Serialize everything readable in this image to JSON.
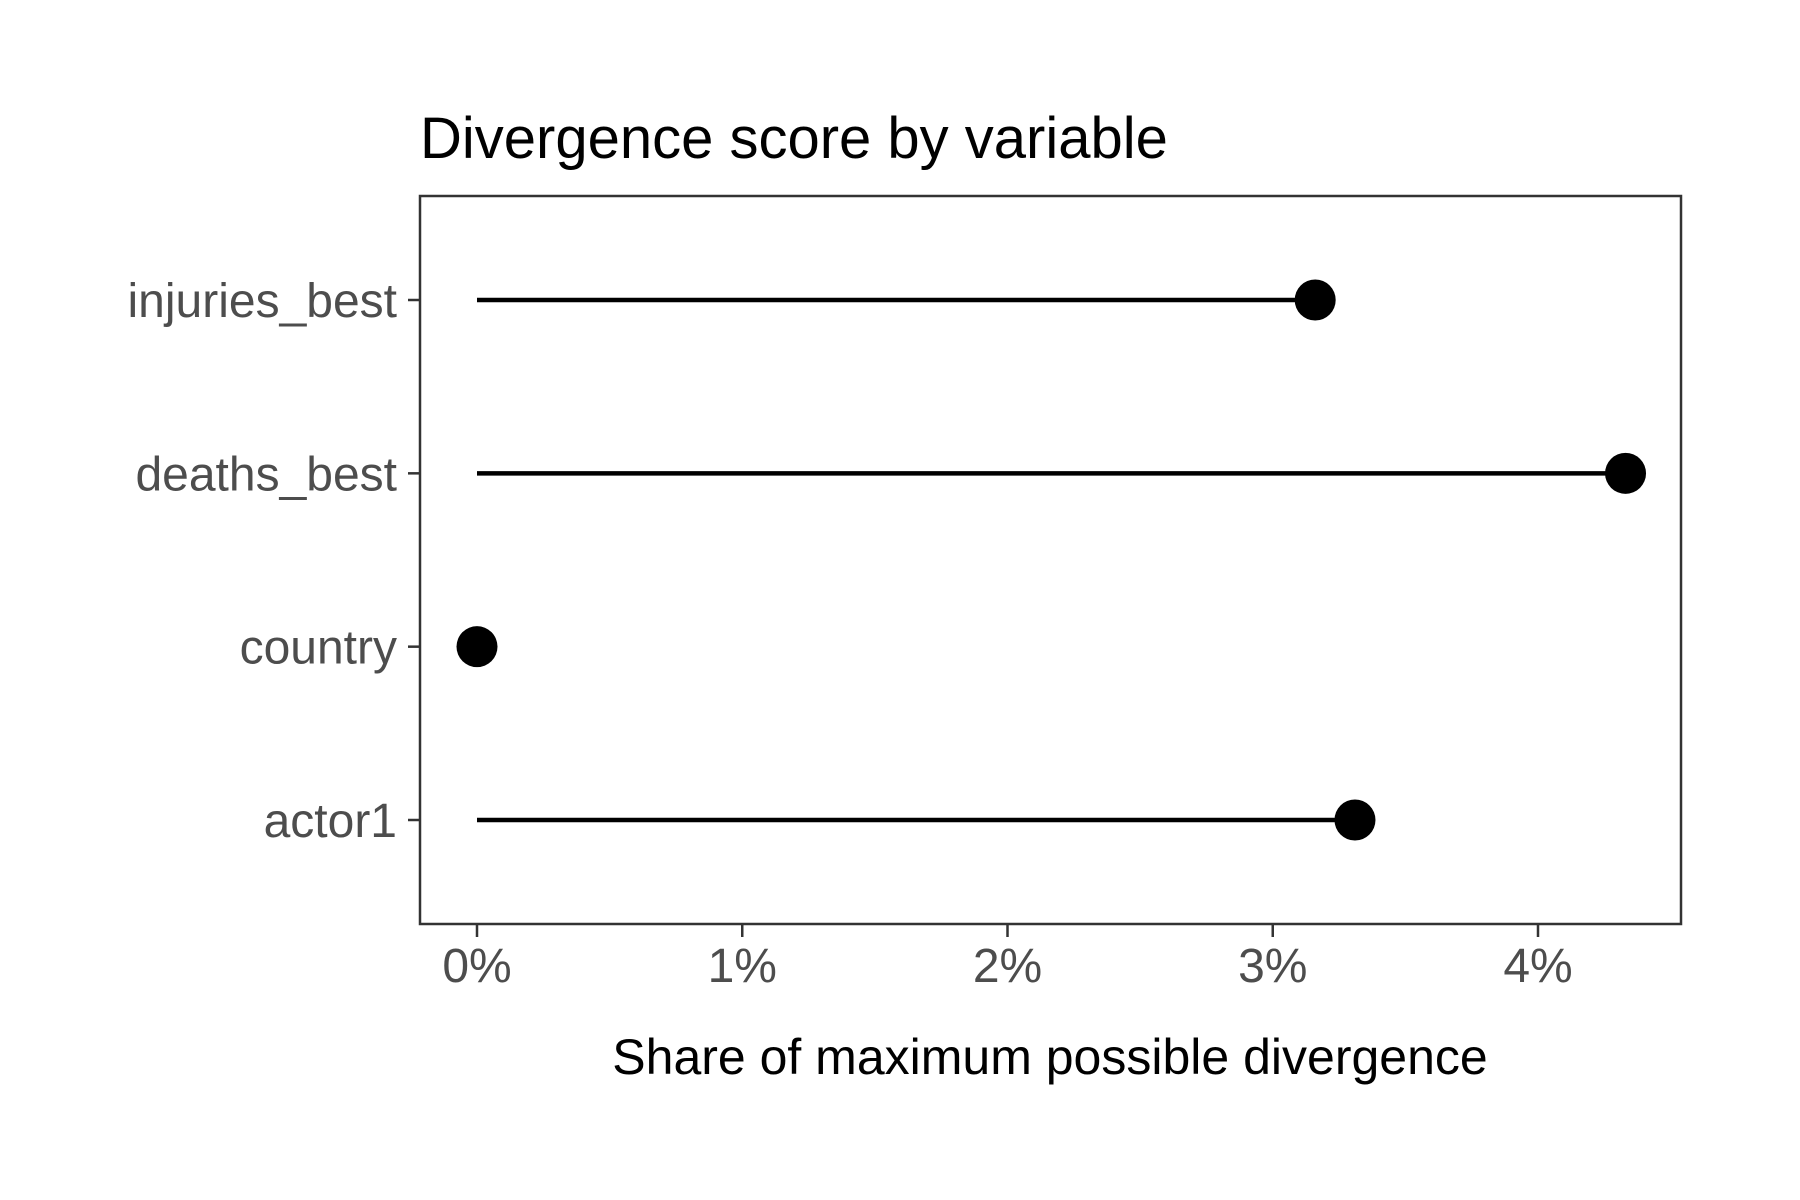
{
  "chart_data": {
    "type": "scatter",
    "variant": "lollipop",
    "orientation": "horizontal",
    "title": "Divergence score by variable",
    "xlabel": "Share of maximum possible divergence",
    "ylabel": "",
    "categories": [
      "injuries_best",
      "deaths_best",
      "country",
      "actor1"
    ],
    "values": [
      3.16,
      4.33,
      0,
      3.31
    ],
    "value_unit": "percent",
    "x_ticks": [
      {
        "value": 0,
        "label": "0%"
      },
      {
        "value": 1,
        "label": "1%"
      },
      {
        "value": 2,
        "label": "2%"
      },
      {
        "value": 3,
        "label": "3%"
      },
      {
        "value": 4,
        "label": "4%"
      }
    ],
    "xlim": [
      -0.215,
      4.54
    ],
    "grid": false,
    "legend": false,
    "colors": {
      "background": "#ffffff",
      "point": "#000000",
      "stem": "#000000",
      "panel_border": "#333333",
      "axis_tick": "#333333",
      "axis_text": "#4d4d4d",
      "title_text": "#000000",
      "axis_title_text": "#000000"
    }
  }
}
